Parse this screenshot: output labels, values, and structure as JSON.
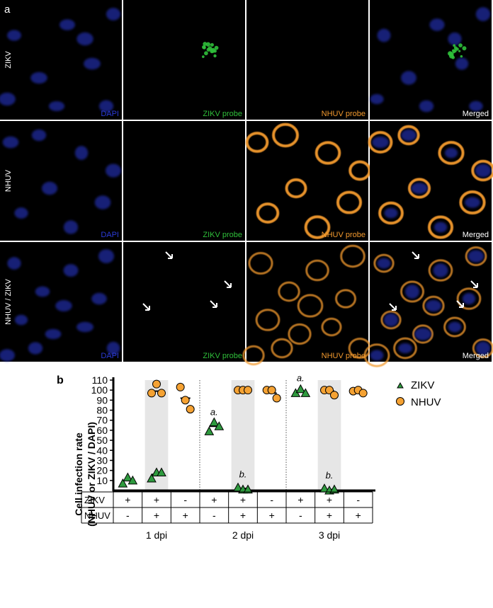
{
  "panel_a": {
    "label": "a",
    "row_labels": [
      "ZIKV",
      "NHUV",
      "NHUV / ZIKV"
    ],
    "column_captions": [
      "DAPI",
      "ZIKV probe",
      "NHUV probe",
      "Merged"
    ],
    "colors": {
      "dapi": "#2b3bd8",
      "zikv": "#2fbf3a",
      "nhuv": "#f39a2e",
      "merged": "#ffffff"
    }
  },
  "panel_b": {
    "label": "b",
    "ylabel_line1": "Cell infection rate",
    "ylabel_line2": "(NHUV or ZIKV / DAPI)",
    "legend": [
      {
        "name": "ZIKV",
        "marker": "triangle",
        "color": "#2e9a3e"
      },
      {
        "name": "NHUV",
        "marker": "circle",
        "color": "#f5a233"
      }
    ],
    "table": {
      "rows": [
        {
          "label": "ZIKV",
          "values": [
            "+",
            "+",
            "-",
            "+",
            "+",
            "-",
            "+",
            "+",
            "-"
          ]
        },
        {
          "label": "NHUV",
          "values": [
            "-",
            "+",
            "+",
            "-",
            "+",
            "+",
            "-",
            "+",
            "+"
          ]
        }
      ],
      "group_labels": [
        "1 dpi",
        "2 dpi",
        "3 dpi"
      ]
    }
  },
  "chart_data": {
    "type": "scatter",
    "title": "",
    "xlabel": "",
    "ylabel": "Cell infection rate (NHUV or ZIKV / DAPI)",
    "ylim": [
      0,
      110
    ],
    "yticks": [
      10,
      20,
      30,
      40,
      50,
      60,
      70,
      80,
      90,
      100,
      110
    ],
    "grid": false,
    "legend_position": "top-right",
    "categories": [
      "1 dpi ZIKV+ NHUV-",
      "1 dpi ZIKV+ NHUV+",
      "1 dpi ZIKV- NHUV+",
      "2 dpi ZIKV+ NHUV-",
      "2 dpi ZIKV+ NHUV+",
      "2 dpi ZIKV- NHUV+",
      "3 dpi ZIKV+ NHUV-",
      "3 dpi ZIKV+ NHUV+",
      "3 dpi ZIKV- NHUV+"
    ],
    "shaded_categories": [
      1,
      4,
      7
    ],
    "group_separators_after": [
      2,
      5
    ],
    "series": [
      {
        "name": "ZIKV",
        "points": [
          {
            "category": 0,
            "values": [
              7,
              13,
              10
            ],
            "mean": 10
          },
          {
            "category": 1,
            "values": [
              12,
              18,
              18
            ],
            "mean": 16
          },
          {
            "category": 3,
            "values": [
              59,
              68,
              64
            ],
            "mean": 64
          },
          {
            "category": 4,
            "values": [
              3,
              1,
              1
            ],
            "mean": 2
          },
          {
            "category": 6,
            "values": [
              97,
              101,
              97
            ],
            "mean": 99
          },
          {
            "category": 7,
            "values": [
              2,
              0,
              1
            ],
            "mean": 1
          }
        ]
      },
      {
        "name": "NHUV",
        "points": [
          {
            "category": 1,
            "values": [
              97,
              106,
              97
            ],
            "mean": 99
          },
          {
            "category": 2,
            "values": [
              103,
              90,
              81
            ],
            "mean": 92
          },
          {
            "category": 4,
            "values": [
              100,
              100,
              100
            ],
            "mean": 100
          },
          {
            "category": 5,
            "values": [
              100,
              100,
              92
            ],
            "mean": 97
          },
          {
            "category": 7,
            "values": [
              100,
              100,
              95
            ],
            "mean": 99
          },
          {
            "category": 8,
            "values": [
              99,
              100,
              97
            ],
            "mean": 98
          }
        ]
      }
    ],
    "annotations": [
      {
        "text": "a.",
        "category": 3,
        "y": 75
      },
      {
        "text": "b.",
        "category": 4,
        "y": 13
      },
      {
        "text": "a.",
        "category": 6,
        "y": 109
      },
      {
        "text": "b.",
        "category": 7,
        "y": 12
      }
    ]
  }
}
